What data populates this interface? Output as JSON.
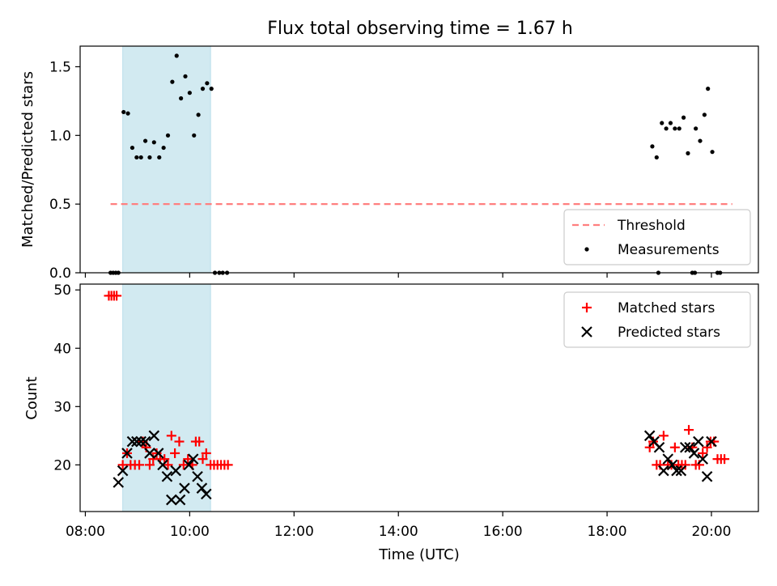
{
  "figure": {
    "title": "Flux total observing time = 1.67 h",
    "xlabel": "Time (UTC)"
  },
  "chart_data": [
    {
      "type": "scatter",
      "panel": "top",
      "ylabel": "Matched/Predicted stars",
      "xlim": [
        "07:54",
        "20:54"
      ],
      "ylim": [
        0,
        1.65
      ],
      "yticks": [
        "0.0",
        "0.5",
        "1.0",
        "1.5"
      ],
      "shaded_span": {
        "start": "08:43",
        "end": "10:24",
        "color": "#add8e6"
      },
      "threshold": {
        "name": "Threshold",
        "y": 0.5,
        "x_start": "08:29",
        "x_end": "20:24",
        "color": "#ff7f7f"
      },
      "legend_position": "lower right",
      "legend": [
        {
          "label": "Threshold",
          "marker": "dashed-line",
          "color": "#ff7f7f"
        },
        {
          "label": "Measurements",
          "marker": "dot",
          "color": "#000000"
        }
      ],
      "series": [
        {
          "name": "Measurements",
          "color": "#000000",
          "points": [
            [
              "08:29",
              0.0
            ],
            [
              "08:32",
              0.0
            ],
            [
              "08:35",
              0.0
            ],
            [
              "08:38",
              0.0
            ],
            [
              "08:44",
              1.17
            ],
            [
              "08:49",
              1.16
            ],
            [
              "08:54",
              0.91
            ],
            [
              "08:59",
              0.84
            ],
            [
              "09:04",
              0.84
            ],
            [
              "09:09",
              0.96
            ],
            [
              "09:14",
              0.84
            ],
            [
              "09:19",
              0.95
            ],
            [
              "09:25",
              0.84
            ],
            [
              "09:30",
              0.91
            ],
            [
              "09:35",
              1.0
            ],
            [
              "09:40",
              1.39
            ],
            [
              "09:45",
              1.58
            ],
            [
              "09:50",
              1.27
            ],
            [
              "09:55",
              1.43
            ],
            [
              "10:00",
              1.31
            ],
            [
              "10:05",
              1.0
            ],
            [
              "10:10",
              1.15
            ],
            [
              "10:15",
              1.34
            ],
            [
              "10:20",
              1.38
            ],
            [
              "10:25",
              1.34
            ],
            [
              "10:29",
              0.0
            ],
            [
              "10:34",
              0.0
            ],
            [
              "10:38",
              0.0
            ],
            [
              "10:43",
              0.0
            ],
            [
              "18:52",
              0.92
            ],
            [
              "18:57",
              0.84
            ],
            [
              "19:03",
              1.09
            ],
            [
              "19:08",
              1.05
            ],
            [
              "19:13",
              1.09
            ],
            [
              "19:18",
              1.05
            ],
            [
              "19:23",
              1.05
            ],
            [
              "19:28",
              1.13
            ],
            [
              "19:33",
              0.87
            ],
            [
              "19:42",
              1.05
            ],
            [
              "19:47",
              0.96
            ],
            [
              "19:52",
              1.15
            ],
            [
              "19:56",
              1.34
            ],
            [
              "20:01",
              0.88
            ],
            [
              "18:59",
              0.0
            ],
            [
              "19:38",
              0.0
            ],
            [
              "19:41",
              0.0
            ],
            [
              "20:07",
              0.0
            ],
            [
              "20:10",
              0.0
            ]
          ]
        }
      ]
    },
    {
      "type": "scatter",
      "panel": "bottom",
      "ylabel": "Count",
      "xlabel": "Time (UTC)",
      "xlim": [
        "07:54",
        "20:54"
      ],
      "ylim": [
        12,
        51
      ],
      "yticks": [
        "20",
        "30",
        "40",
        "50"
      ],
      "xticks": [
        "08:00",
        "10:00",
        "12:00",
        "14:00",
        "16:00",
        "18:00",
        "20:00"
      ],
      "shaded_span": {
        "start": "08:43",
        "end": "10:24",
        "color": "#add8e6"
      },
      "legend_position": "upper right",
      "legend": [
        {
          "label": "Matched stars",
          "marker": "plus",
          "color": "#ff0000"
        },
        {
          "label": "Predicted stars",
          "marker": "x",
          "color": "#000000"
        }
      ],
      "series": [
        {
          "name": "Matched stars",
          "marker": "plus",
          "color": "#ff0000",
          "points": [
            [
              "08:27",
              49
            ],
            [
              "08:30",
              49
            ],
            [
              "08:33",
              49
            ],
            [
              "08:36",
              49
            ],
            [
              "08:43",
              20
            ],
            [
              "08:48",
              22
            ],
            [
              "08:52",
              20
            ],
            [
              "08:57",
              20
            ],
            [
              "09:02",
              20
            ],
            [
              "09:06",
              24
            ],
            [
              "09:10",
              23
            ],
            [
              "09:14",
              20
            ],
            [
              "09:18",
              21
            ],
            [
              "09:22",
              22
            ],
            [
              "09:26",
              21
            ],
            [
              "09:31",
              21
            ],
            [
              "09:35",
              20
            ],
            [
              "09:39",
              25
            ],
            [
              "09:43",
              22
            ],
            [
              "09:48",
              24
            ],
            [
              "09:53",
              20
            ],
            [
              "09:58",
              21
            ],
            [
              "10:03",
              20
            ],
            [
              "10:07",
              24
            ],
            [
              "10:11",
              24
            ],
            [
              "10:15",
              21
            ],
            [
              "10:19",
              22
            ],
            [
              "10:24",
              20
            ],
            [
              "10:28",
              20
            ],
            [
              "10:32",
              20
            ],
            [
              "10:36",
              20
            ],
            [
              "10:40",
              20
            ],
            [
              "10:44",
              20
            ],
            [
              "18:49",
              23
            ],
            [
              "18:53",
              24
            ],
            [
              "18:57",
              20
            ],
            [
              "19:01",
              20
            ],
            [
              "19:05",
              25
            ],
            [
              "19:10",
              20
            ],
            [
              "19:14",
              20
            ],
            [
              "19:18",
              23
            ],
            [
              "19:22",
              20
            ],
            [
              "19:26",
              20
            ],
            [
              "19:30",
              20
            ],
            [
              "19:34",
              26
            ],
            [
              "19:38",
              23
            ],
            [
              "19:42",
              20
            ],
            [
              "19:46",
              20
            ],
            [
              "19:50",
              22
            ],
            [
              "19:55",
              23
            ],
            [
              "19:59",
              24
            ],
            [
              "20:03",
              24
            ],
            [
              "20:07",
              21
            ],
            [
              "20:11",
              21
            ],
            [
              "20:15",
              21
            ]
          ]
        },
        {
          "name": "Predicted stars",
          "marker": "x",
          "color": "#000000",
          "points": [
            [
              "08:38",
              17
            ],
            [
              "08:43",
              19
            ],
            [
              "08:48",
              22
            ],
            [
              "08:54",
              24
            ],
            [
              "08:59",
              24
            ],
            [
              "09:04",
              24
            ],
            [
              "09:09",
              24
            ],
            [
              "09:14",
              22
            ],
            [
              "09:19",
              25
            ],
            [
              "09:24",
              22
            ],
            [
              "09:29",
              20
            ],
            [
              "09:34",
              18
            ],
            [
              "09:39",
              14
            ],
            [
              "09:44",
              19
            ],
            [
              "09:49",
              14
            ],
            [
              "09:54",
              16
            ],
            [
              "09:59",
              20
            ],
            [
              "10:04",
              21
            ],
            [
              "10:09",
              18
            ],
            [
              "10:14",
              16
            ],
            [
              "10:19",
              15
            ],
            [
              "18:49",
              25
            ],
            [
              "18:54",
              24
            ],
            [
              "19:00",
              23
            ],
            [
              "19:05",
              19
            ],
            [
              "19:10",
              21
            ],
            [
              "19:15",
              20
            ],
            [
              "19:20",
              19
            ],
            [
              "19:25",
              19
            ],
            [
              "19:30",
              23
            ],
            [
              "19:35",
              23
            ],
            [
              "19:40",
              22
            ],
            [
              "19:45",
              24
            ],
            [
              "19:50",
              21
            ],
            [
              "19:55",
              18
            ],
            [
              "20:00",
              24
            ]
          ]
        }
      ]
    }
  ]
}
